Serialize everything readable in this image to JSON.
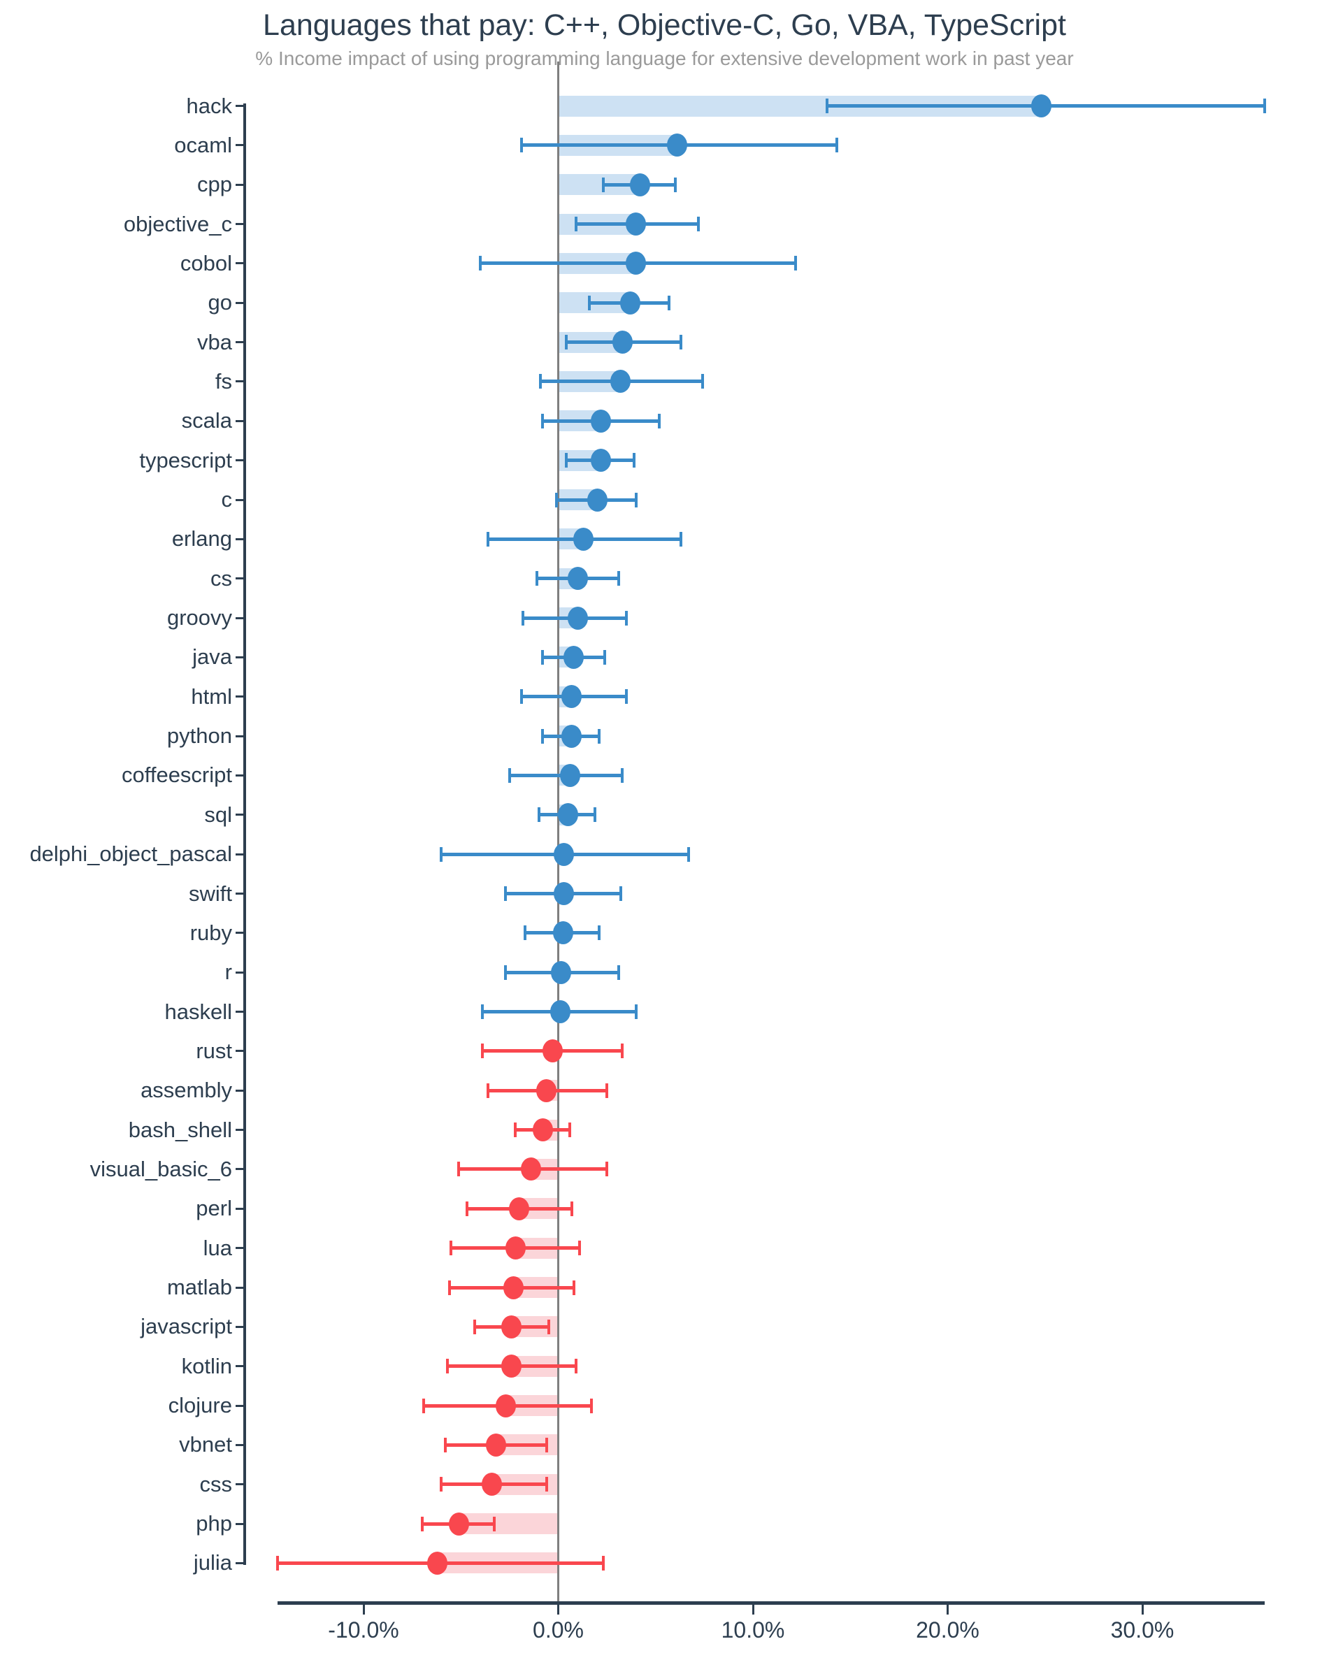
{
  "title": "Languages that pay: C++, Objective-C, Go, VBA, TypeScript",
  "subtitle": "% Income impact of using programming language for extensive development work in past year",
  "colors": {
    "positive": "#3a8bc9",
    "positive_light": "#cde1f3",
    "negative": "#f9474e",
    "negative_light": "#fbd5d9",
    "zero_line": "#7f7f7f",
    "axis": "#2d3e4f",
    "subtitle_text": "#9a9a9a"
  },
  "chart_data": {
    "type": "scatter",
    "variant": "horizontal point estimates with error bars (CI whiskers) and light bars from zero to each point",
    "title": "Languages that pay: C++, Objective-C, Go, VBA, TypeScript",
    "subtitle": "% Income impact of using programming language for extensive development work in past year",
    "xlabel": "",
    "ylabel": "",
    "grid": false,
    "legend": false,
    "x_tick_values": [
      -10,
      0,
      10,
      20,
      30
    ],
    "x_tick_labels": [
      "-10.0%",
      "0.0%",
      "10.0%",
      "20.0%",
      "30.0%"
    ],
    "xlim": [
      -16.2,
      39.7
    ],
    "unit": "percent",
    "points": [
      {
        "label": "hack",
        "value": 24.8,
        "ci_low": 13.8,
        "ci_high": 36.3
      },
      {
        "label": "ocaml",
        "value": 6.1,
        "ci_low": -1.9,
        "ci_high": 14.3
      },
      {
        "label": "cpp",
        "value": 4.2,
        "ci_low": 2.3,
        "ci_high": 6.0
      },
      {
        "label": "objective_c",
        "value": 4.0,
        "ci_low": 0.9,
        "ci_high": 7.2
      },
      {
        "label": "cobol",
        "value": 4.0,
        "ci_low": -4.0,
        "ci_high": 12.2
      },
      {
        "label": "go",
        "value": 3.7,
        "ci_low": 1.6,
        "ci_high": 5.7
      },
      {
        "label": "vba",
        "value": 3.3,
        "ci_low": 0.4,
        "ci_high": 6.3
      },
      {
        "label": "fs",
        "value": 3.2,
        "ci_low": -0.9,
        "ci_high": 7.4
      },
      {
        "label": "scala",
        "value": 2.2,
        "ci_low": -0.8,
        "ci_high": 5.2
      },
      {
        "label": "typescript",
        "value": 2.2,
        "ci_low": 0.4,
        "ci_high": 3.9
      },
      {
        "label": "c",
        "value": 2.0,
        "ci_low": -0.1,
        "ci_high": 4.0
      },
      {
        "label": "erlang",
        "value": 1.3,
        "ci_low": -3.6,
        "ci_high": 6.3
      },
      {
        "label": "cs",
        "value": 1.0,
        "ci_low": -1.1,
        "ci_high": 3.1
      },
      {
        "label": "groovy",
        "value": 1.0,
        "ci_low": -1.8,
        "ci_high": 3.5
      },
      {
        "label": "java",
        "value": 0.8,
        "ci_low": -0.8,
        "ci_high": 2.4
      },
      {
        "label": "html",
        "value": 0.7,
        "ci_low": -1.9,
        "ci_high": 3.5
      },
      {
        "label": "python",
        "value": 0.7,
        "ci_low": -0.8,
        "ci_high": 2.1
      },
      {
        "label": "coffeescript",
        "value": 0.6,
        "ci_low": -2.5,
        "ci_high": 3.3
      },
      {
        "label": "sql",
        "value": 0.5,
        "ci_low": -1.0,
        "ci_high": 1.9
      },
      {
        "label": "delphi_object_pascal",
        "value": 0.3,
        "ci_low": -6.0,
        "ci_high": 6.7
      },
      {
        "label": "swift",
        "value": 0.3,
        "ci_low": -2.7,
        "ci_high": 3.2
      },
      {
        "label": "ruby",
        "value": 0.25,
        "ci_low": -1.7,
        "ci_high": 2.1
      },
      {
        "label": "r",
        "value": 0.15,
        "ci_low": -2.7,
        "ci_high": 3.1
      },
      {
        "label": "haskell",
        "value": 0.1,
        "ci_low": -3.9,
        "ci_high": 4.0
      },
      {
        "label": "rust",
        "value": -0.3,
        "ci_low": -3.9,
        "ci_high": 3.3
      },
      {
        "label": "assembly",
        "value": -0.6,
        "ci_low": -3.6,
        "ci_high": 2.5
      },
      {
        "label": "bash_shell",
        "value": -0.8,
        "ci_low": -2.2,
        "ci_high": 0.6
      },
      {
        "label": "visual_basic_6",
        "value": -1.4,
        "ci_low": -5.1,
        "ci_high": 2.5
      },
      {
        "label": "perl",
        "value": -2.0,
        "ci_low": -4.7,
        "ci_high": 0.7
      },
      {
        "label": "lua",
        "value": -2.2,
        "ci_low": -5.5,
        "ci_high": 1.1
      },
      {
        "label": "matlab",
        "value": -2.3,
        "ci_low": -5.6,
        "ci_high": 0.8
      },
      {
        "label": "javascript",
        "value": -2.4,
        "ci_low": -4.3,
        "ci_high": -0.5
      },
      {
        "label": "kotlin",
        "value": -2.4,
        "ci_low": -5.7,
        "ci_high": 0.9
      },
      {
        "label": "clojure",
        "value": -2.7,
        "ci_low": -6.9,
        "ci_high": 1.7
      },
      {
        "label": "vbnet",
        "value": -3.2,
        "ci_low": -5.8,
        "ci_high": -0.6
      },
      {
        "label": "css",
        "value": -3.4,
        "ci_low": -6.0,
        "ci_high": -0.6
      },
      {
        "label": "php",
        "value": -5.1,
        "ci_low": -7.0,
        "ci_high": -3.3
      },
      {
        "label": "julia",
        "value": -6.2,
        "ci_low": -14.4,
        "ci_high": 2.3
      }
    ]
  }
}
